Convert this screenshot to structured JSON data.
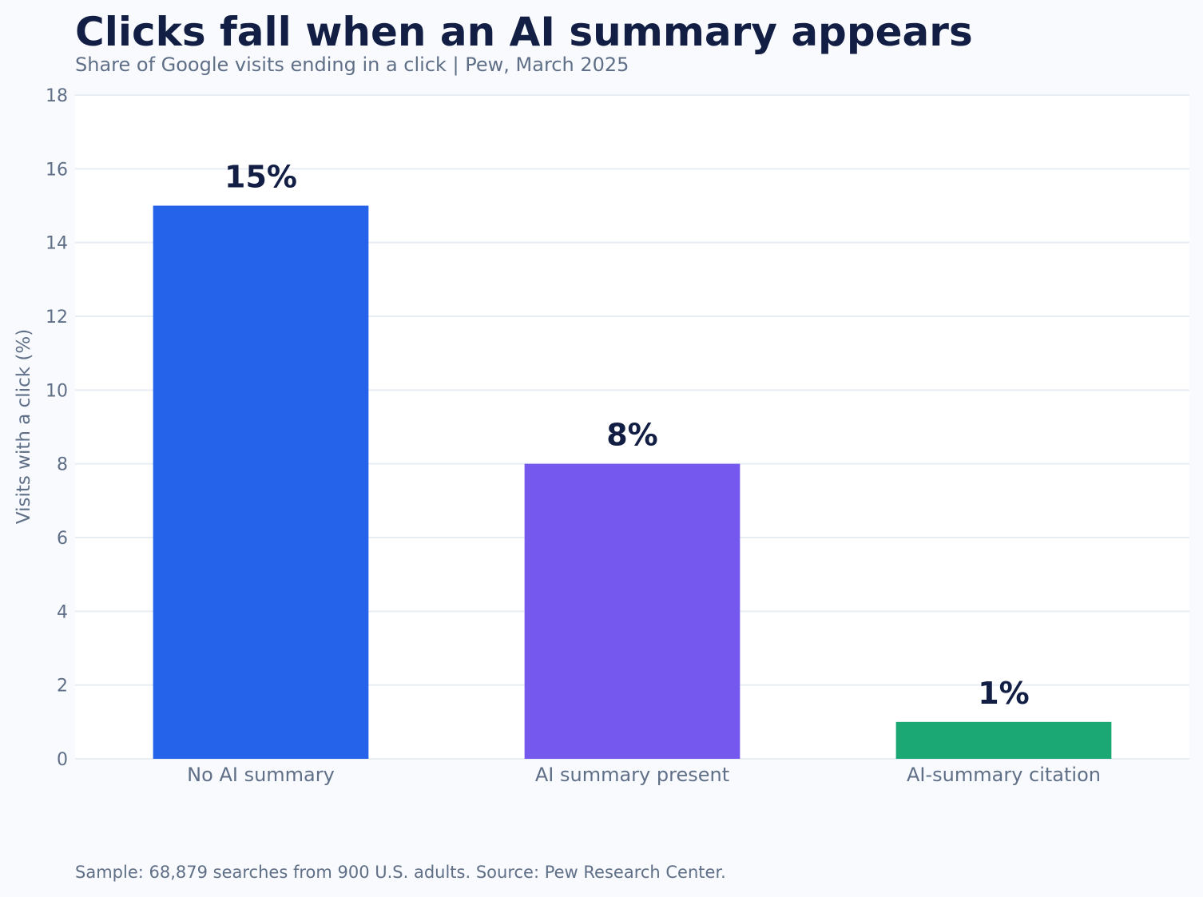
{
  "page": {
    "background": "#f8fafd",
    "title": "Clicks fall when an AI summary appears",
    "subtitle": "Share of Google visits ending in a click | Pew, March 2025",
    "footer": "Sample: 68,879 searches from 900 U.S. adults. Source: Pew Research Center."
  },
  "chart_data": {
    "type": "bar",
    "title": "Clicks fall when an AI summary appears",
    "subtitle": "Share of Google visits ending in a click | Pew, March 2025",
    "xlabel": "",
    "ylabel": "Visits with a click (%)",
    "categories": [
      "No AI summary",
      "AI summary present",
      "AI-summary citation"
    ],
    "values": [
      15,
      8,
      1
    ],
    "data_labels": [
      "15%",
      "8%",
      "1%"
    ],
    "colors": [
      "#2563eb",
      "#7559ef",
      "#1ca874"
    ],
    "ylim": [
      0,
      18
    ],
    "yticks": [
      0,
      2,
      4,
      6,
      8,
      10,
      12,
      14,
      16,
      18
    ],
    "grid": true,
    "legend": "none"
  }
}
